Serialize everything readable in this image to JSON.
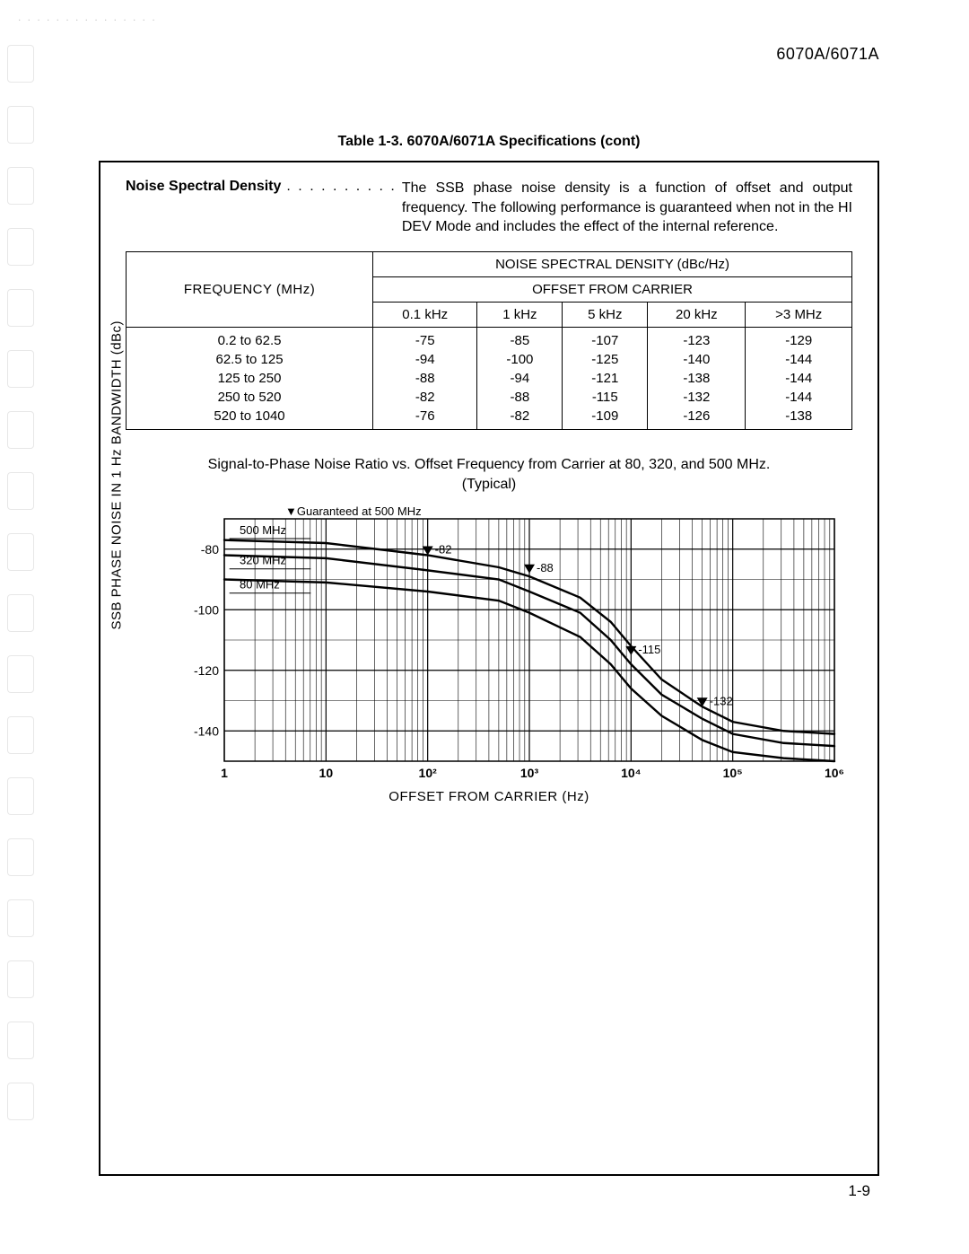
{
  "scan_artifact": ". . . . . . . . . . . . . . .",
  "header": {
    "model": "6070A/6071A"
  },
  "table_caption": "Table 1-3. 6070A/6071A Specifications (cont)",
  "spec": {
    "label": "Noise Spectral Density",
    "dots": ". . . . . . . . . .",
    "text": "The SSB phase noise density is a function of offset and output frequency. The following performance is guaranteed when not in the HI DEV Mode and includes the effect of the internal reference."
  },
  "table": {
    "top_header": "NOISE SPECTRAL DENSITY (dBc/Hz)",
    "freq_header": "FREQUENCY (MHz)",
    "offset_header": "OFFSET FROM CARRIER",
    "offset_cols": [
      "0.1 kHz",
      "1 kHz",
      "5 kHz",
      "20 kHz",
      ">3 MHz"
    ],
    "rows": [
      {
        "freq": "0.2 to 62.5",
        "vals": [
          "-75",
          "-85",
          "-107",
          "-123",
          "-129"
        ]
      },
      {
        "freq": "62.5 to 125",
        "vals": [
          "-94",
          "-100",
          "-125",
          "-140",
          "-144"
        ]
      },
      {
        "freq": "125 to 250",
        "vals": [
          "-88",
          "-94",
          "-121",
          "-138",
          "-144"
        ]
      },
      {
        "freq": "250 to 520",
        "vals": [
          "-82",
          "-88",
          "-115",
          "-132",
          "-144"
        ]
      },
      {
        "freq": "520 to 1040",
        "vals": [
          "-76",
          "-82",
          "-109",
          "-126",
          "-138"
        ]
      }
    ]
  },
  "chart": {
    "title_line1": "Signal-to-Phase Noise Ratio vs. Offset Frequency from Carrier at 80, 320, and 500 MHz.",
    "title_line2": "(Typical)",
    "guaranteed_note": "▼Guaranteed at 500 MHz",
    "y_label": "SSB PHASE NOISE IN 1 Hz BANDWIDTH (dBc)",
    "x_label": "OFFSET FROM CARRIER (Hz)",
    "background_color": "#ffffff",
    "grid_color": "#000000",
    "line_color": "#000000",
    "line_width": 2.4,
    "y_ticks": [
      -80,
      -100,
      -120,
      -140
    ],
    "y_range": [
      -150,
      -70
    ],
    "x_ticks_log": [
      0,
      1,
      2,
      3,
      4,
      5,
      6
    ],
    "x_tick_labels": [
      "1",
      "10",
      "10²",
      "10³",
      "10⁴",
      "10⁵",
      "10⁶"
    ],
    "series_labels": {
      "500": "500 MHz",
      "320": "320 MHz",
      "80": "80 MHz"
    },
    "curves": {
      "500": [
        [
          0,
          -77
        ],
        [
          1,
          -78
        ],
        [
          2,
          -82
        ],
        [
          2.7,
          -86
        ],
        [
          3,
          -89
        ],
        [
          3.5,
          -96
        ],
        [
          3.8,
          -104
        ],
        [
          4,
          -112
        ],
        [
          4.3,
          -123
        ],
        [
          4.7,
          -132
        ],
        [
          5,
          -137
        ],
        [
          5.5,
          -140
        ],
        [
          6,
          -141
        ]
      ],
      "320": [
        [
          0,
          -82
        ],
        [
          1,
          -83
        ],
        [
          2,
          -87
        ],
        [
          2.7,
          -90
        ],
        [
          3,
          -94
        ],
        [
          3.5,
          -101
        ],
        [
          3.8,
          -110
        ],
        [
          4,
          -118
        ],
        [
          4.3,
          -128
        ],
        [
          4.7,
          -136
        ],
        [
          5,
          -141
        ],
        [
          5.5,
          -144
        ],
        [
          6,
          -145
        ]
      ],
      "80": [
        [
          0,
          -90
        ],
        [
          1,
          -91
        ],
        [
          2,
          -94
        ],
        [
          2.7,
          -97
        ],
        [
          3,
          -101
        ],
        [
          3.5,
          -109
        ],
        [
          3.8,
          -118
        ],
        [
          4,
          -126
        ],
        [
          4.3,
          -135
        ],
        [
          4.7,
          -143
        ],
        [
          5,
          -147
        ],
        [
          5.5,
          -149
        ],
        [
          6,
          -150
        ]
      ]
    },
    "markers": [
      {
        "x": 2,
        "y": -82,
        "label": "-82"
      },
      {
        "x": 3,
        "y": -88,
        "label": "-88"
      },
      {
        "x": 4,
        "y": -115,
        "label": "-115"
      },
      {
        "x": 4.7,
        "y": -132,
        "label": "-132"
      }
    ]
  },
  "page_number": "1-9"
}
